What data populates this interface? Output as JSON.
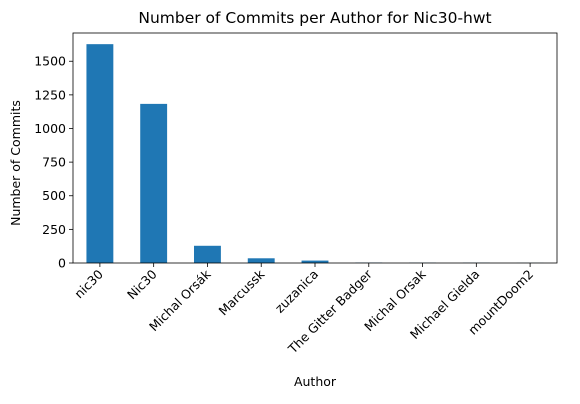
{
  "chart_data": {
    "type": "bar",
    "title": "Number of Commits per Author for Nic30-hwt",
    "xlabel": "Author",
    "ylabel": "Number of Commits",
    "categories": [
      "nic30",
      "Nic30",
      "Michal Orsák",
      "Marcussk",
      "zuzanica",
      "The Gitter Badger",
      "Michal Orsak",
      "Michael Gielda",
      "mountDoom2"
    ],
    "values": [
      1627,
      1183,
      128,
      35,
      18,
      3,
      2,
      2,
      1
    ],
    "ylim": [
      0,
      1710
    ],
    "yticks": [
      0,
      250,
      500,
      750,
      1000,
      1250,
      1500
    ],
    "bar_color": "#1f77b4",
    "grid": false,
    "legend": false
  }
}
